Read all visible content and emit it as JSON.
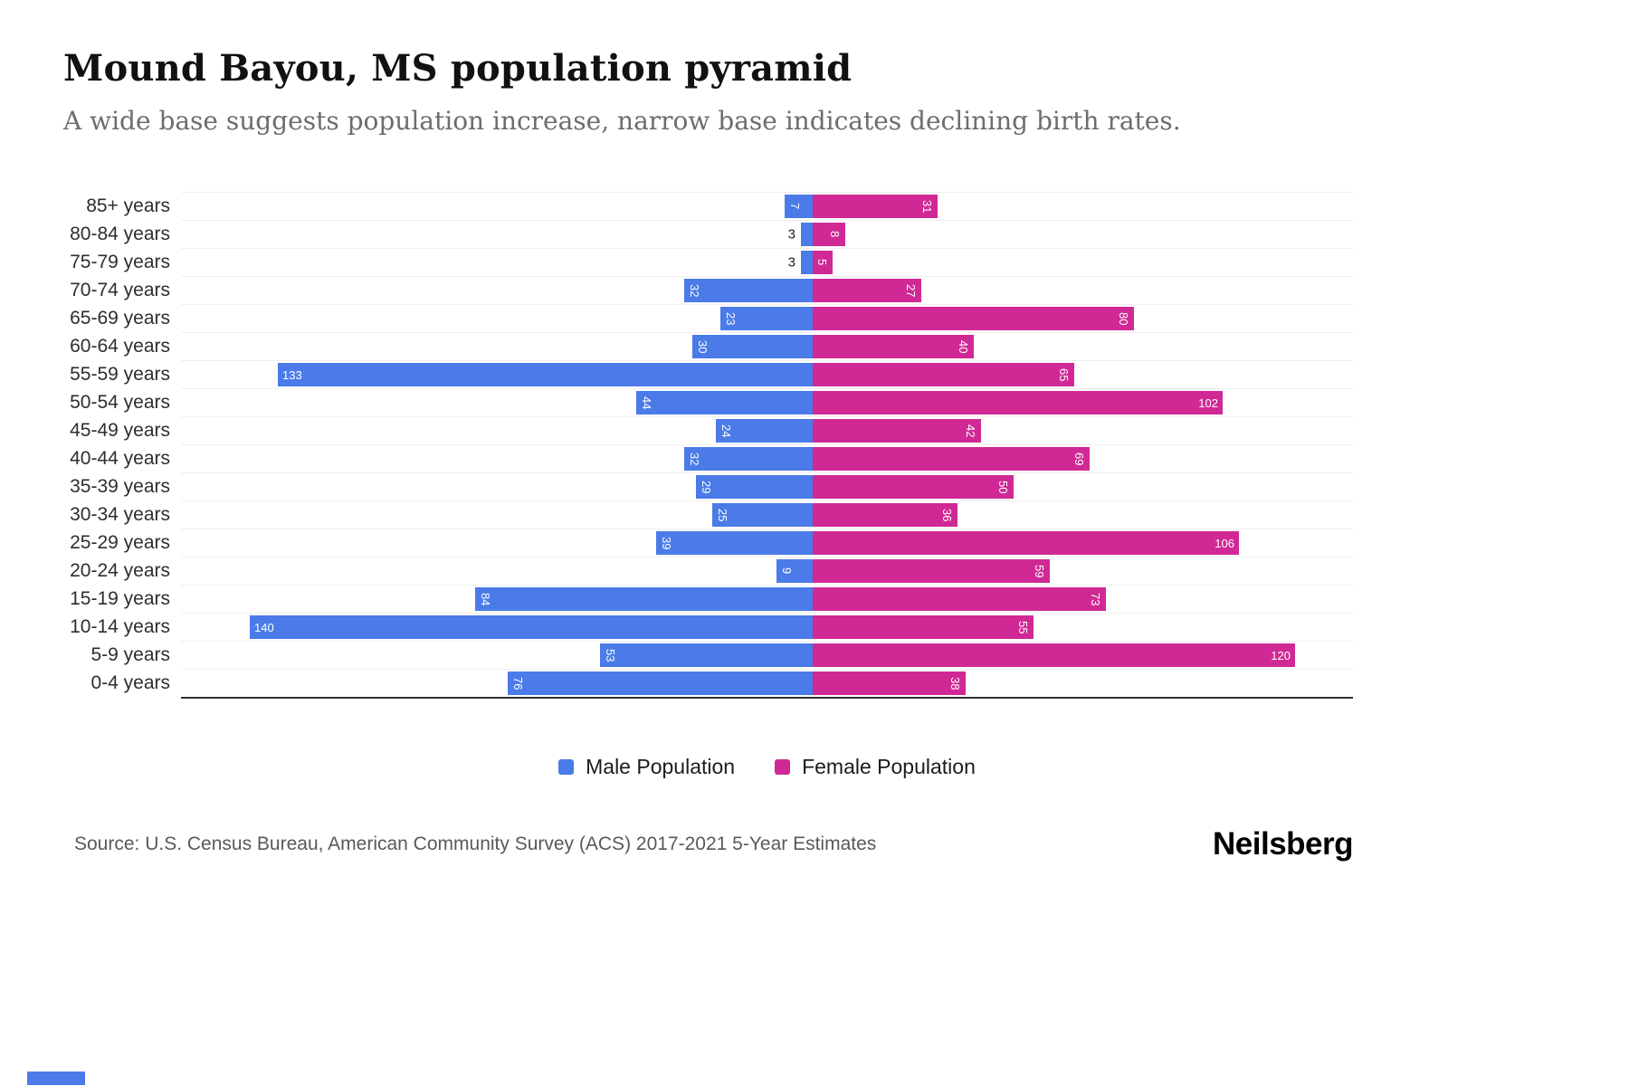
{
  "header": {
    "title": "Mound Bayou, MS population pyramid",
    "subtitle": "A wide base suggests population increase, narrow base indicates declining birth rates."
  },
  "legend": [
    {
      "label": "Male Population",
      "color": "#4a7be8"
    },
    {
      "label": "Female Population",
      "color": "#d02995"
    }
  ],
  "footer": {
    "source": "Source: U.S. Census Bureau, American Community Survey (ACS) 2017-2021 5-Year Estimates",
    "logo": "Neilsberg"
  },
  "chart_data": {
    "type": "bar",
    "subtype": "population-pyramid",
    "orientation": "horizontal",
    "categories": [
      "85+ years",
      "80-84 years",
      "75-79 years",
      "70-74 years",
      "65-69 years",
      "60-64 years",
      "55-59 years",
      "50-54 years",
      "45-49 years",
      "40-44 years",
      "35-39 years",
      "30-34 years",
      "25-29 years",
      "20-24 years",
      "15-19 years",
      "10-14 years",
      "5-9 years",
      "0-4 years"
    ],
    "series": [
      {
        "name": "Male Population",
        "color": "#4a7be8",
        "values": [
          7,
          3,
          3,
          32,
          23,
          30,
          133,
          44,
          24,
          32,
          29,
          25,
          39,
          9,
          84,
          140,
          53,
          76
        ]
      },
      {
        "name": "Female Population",
        "color": "#d02995",
        "values": [
          31,
          8,
          5,
          27,
          80,
          40,
          65,
          102,
          42,
          69,
          50,
          36,
          106,
          59,
          73,
          55,
          120,
          38
        ]
      }
    ],
    "value_labels": "on-bars",
    "grid": "horizontal-light",
    "xmax_each_side": 145,
    "legend_position": "bottom"
  }
}
